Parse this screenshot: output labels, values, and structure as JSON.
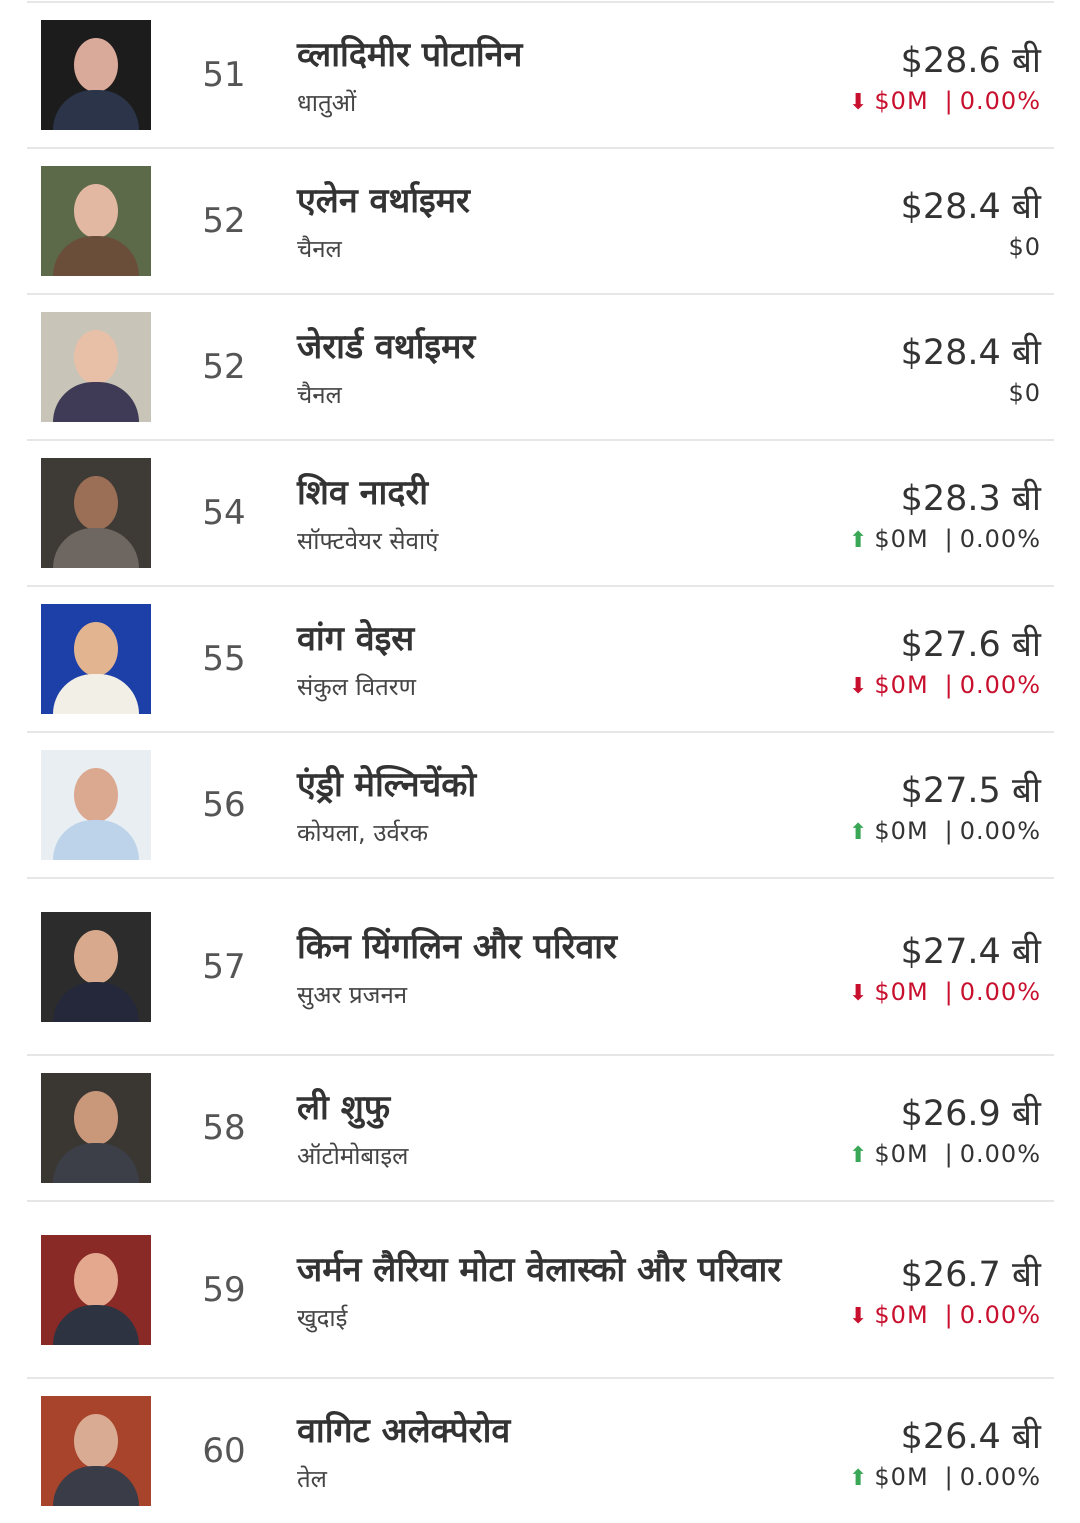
{
  "colors": {
    "down": "#c8102e",
    "up": "#3aa756",
    "text": "#333333"
  },
  "unit": "बी",
  "rows": [
    {
      "rank": "51",
      "name": "व्लादिमीर पोटानिन",
      "industry": "धातुओं",
      "worth": "$28.6 बी",
      "direction": "down",
      "change": "$0M",
      "percent": "0.00%",
      "photo_colors": [
        "#1c1c1c",
        "#d9a99a",
        "#2b3448"
      ]
    },
    {
      "rank": "52",
      "name": "एलेन वर्थाइमर",
      "industry": "चैनल",
      "worth": "$28.4 बी",
      "direction": "none",
      "change": "$0",
      "percent": "",
      "photo_colors": [
        "#5d6a4a",
        "#e2b8a2",
        "#6a4e3a"
      ]
    },
    {
      "rank": "52",
      "name": "जेरार्ड वर्थाइमर",
      "industry": "चैनल",
      "worth": "$28.4 बी",
      "direction": "none",
      "change": "$0",
      "percent": "",
      "photo_colors": [
        "#c9c4b8",
        "#e8c0a8",
        "#3f3a55"
      ]
    },
    {
      "rank": "54",
      "name": "शिव नादरी",
      "industry": "सॉफ्टवेयर सेवाएं",
      "worth": "$28.3 बी",
      "direction": "up",
      "change": "$0M",
      "percent": "0.00%",
      "photo_colors": [
        "#3e3a36",
        "#9b6f55",
        "#6e6660"
      ]
    },
    {
      "rank": "55",
      "name": "वांग वेइस",
      "industry": "संकुल वितरण",
      "worth": "$27.6 बी",
      "direction": "down",
      "change": "$0M",
      "percent": "0.00%",
      "photo_colors": [
        "#1d3fa8",
        "#e2b48f",
        "#f2efe6"
      ]
    },
    {
      "rank": "56",
      "name": "एंड्री मेल्निचेंको",
      "industry": "कोयला, उर्वरक",
      "worth": "$27.5 बी",
      "direction": "up",
      "change": "$0M",
      "percent": "0.00%",
      "photo_colors": [
        "#e8eef2",
        "#dba890",
        "#bcd3ea"
      ]
    },
    {
      "rank": "57",
      "name": "किन यिंगलिन और परिवार",
      "industry": "सुअर प्रजनन",
      "worth": "$27.4 बी",
      "direction": "down",
      "change": "$0M",
      "percent": "0.00%",
      "tall": true,
      "photo_colors": [
        "#2c2c2c",
        "#d8a98c",
        "#24283a"
      ]
    },
    {
      "rank": "58",
      "name": "ली शुफु",
      "industry": "ऑटोमोबाइल",
      "worth": "$26.9 बी",
      "direction": "up",
      "change": "$0M",
      "percent": "0.00%",
      "photo_colors": [
        "#3a3732",
        "#c9977a",
        "#3d3f48"
      ]
    },
    {
      "rank": "59",
      "name": "जर्मन लैरिया मोटा वेलास्को और परिवार",
      "industry": "खुदाई",
      "worth": "$26.7 बी",
      "direction": "down",
      "change": "$0M",
      "percent": "0.00%",
      "tall": true,
      "photo_colors": [
        "#8a2a26",
        "#e3a88e",
        "#2d3340"
      ]
    },
    {
      "rank": "60",
      "name": "वागिट अलेक्पेरोव",
      "industry": "तेल",
      "worth": "$26.4 बी",
      "direction": "up",
      "change": "$0M",
      "percent": "0.00%",
      "photo_colors": [
        "#a8432c",
        "#d9ab92",
        "#3a3c48"
      ]
    }
  ]
}
